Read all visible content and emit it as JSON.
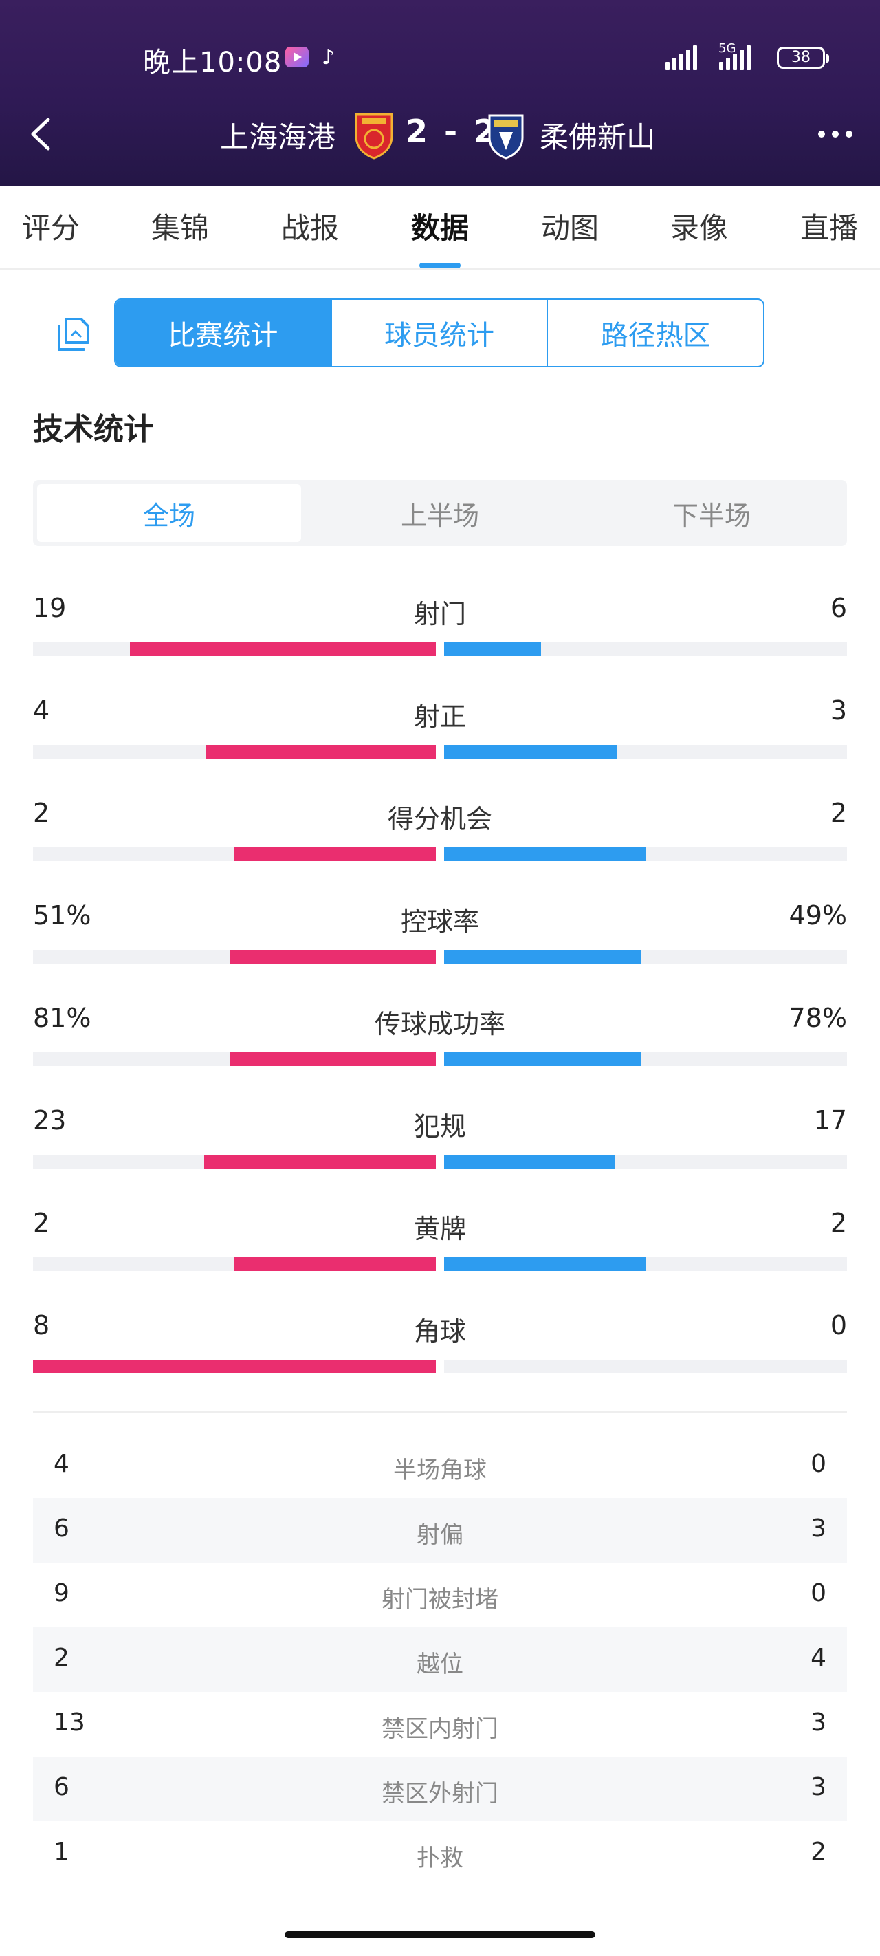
{
  "status_bar": {
    "time": "晚上10:08",
    "network": "5G",
    "battery": "38"
  },
  "match": {
    "home_team": "上海海港",
    "score": "2 - 2",
    "away_team": "柔佛新山"
  },
  "tabs": [
    {
      "label": "评分"
    },
    {
      "label": "集锦"
    },
    {
      "label": "战报"
    },
    {
      "label": "数据"
    },
    {
      "label": "动图"
    },
    {
      "label": "录像"
    },
    {
      "label": "直播"
    }
  ],
  "active_tab": "数据",
  "segments": [
    {
      "label": "比赛统计"
    },
    {
      "label": "球员统计"
    },
    {
      "label": "路径热区"
    }
  ],
  "section_title": "技术统计",
  "periods": [
    {
      "label": "全场"
    },
    {
      "label": "上半场"
    },
    {
      "label": "下半场"
    }
  ],
  "stats": [
    {
      "name": "射门",
      "home": "19",
      "away": "6",
      "home_share": 0.76,
      "away_share": 0.24
    },
    {
      "name": "射正",
      "home": "4",
      "away": "3",
      "home_share": 0.57,
      "away_share": 0.43
    },
    {
      "name": "得分机会",
      "home": "2",
      "away": "2",
      "home_share": 0.5,
      "away_share": 0.5
    },
    {
      "name": "控球率",
      "home": "51%",
      "away": "49%",
      "home_share": 0.51,
      "away_share": 0.49
    },
    {
      "name": "传球成功率",
      "home": "81%",
      "away": "78%",
      "home_share": 0.51,
      "away_share": 0.49
    },
    {
      "name": "犯规",
      "home": "23",
      "away": "17",
      "home_share": 0.575,
      "away_share": 0.425
    },
    {
      "name": "黄牌",
      "home": "2",
      "away": "2",
      "home_share": 0.5,
      "away_share": 0.5
    },
    {
      "name": "角球",
      "home": "8",
      "away": "0",
      "home_share": 1.0,
      "away_share": 0.0
    }
  ],
  "table_rows": [
    {
      "name": "半场角球",
      "home": "4",
      "away": "0"
    },
    {
      "name": "射偏",
      "home": "6",
      "away": "3"
    },
    {
      "name": "射门被封堵",
      "home": "9",
      "away": "0"
    },
    {
      "name": "越位",
      "home": "2",
      "away": "4"
    },
    {
      "name": "禁区内射门",
      "home": "13",
      "away": "3"
    },
    {
      "name": "禁区外射门",
      "home": "6",
      "away": "3"
    },
    {
      "name": "扑救",
      "home": "1",
      "away": "2"
    }
  ],
  "colors": {
    "header_bg": "#2f1a55",
    "accent": "#2d9cf0",
    "home_bar": "#ea2e6f",
    "away_bar": "#2d9cf0"
  }
}
